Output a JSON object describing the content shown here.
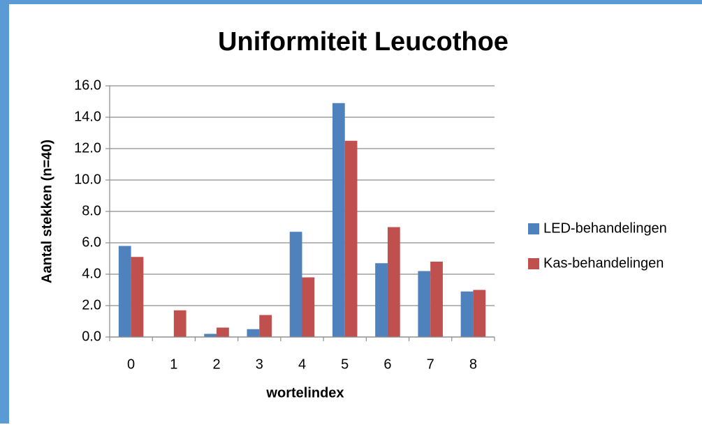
{
  "chart_data": {
    "type": "bar",
    "title": "Uniformiteit Leucothoe",
    "x_label": "wortelindex",
    "y_label": "Aantal stekken (n=40)",
    "categories": [
      "0",
      "1",
      "2",
      "3",
      "4",
      "5",
      "6",
      "7",
      "8"
    ],
    "series": [
      {
        "name": "LED-behandelingen",
        "color": "#4f81bd",
        "values": [
          5.8,
          0,
          0.2,
          0.5,
          6.7,
          14.9,
          4.7,
          4.2,
          2.9
        ]
      },
      {
        "name": "Kas-behandelingen",
        "color": "#c0504d",
        "values": [
          5.1,
          1.7,
          0.6,
          1.4,
          3.8,
          12.5,
          7.0,
          4.8,
          3.0
        ]
      }
    ],
    "ylim": [
      0,
      16
    ],
    "yticks": [
      {
        "value": 0,
        "label": "0.0"
      },
      {
        "value": 2,
        "label": "2.0"
      },
      {
        "value": 4,
        "label": "4.0"
      },
      {
        "value": 6,
        "label": "6.0"
      },
      {
        "value": 8,
        "label": "8.0"
      },
      {
        "value": 10,
        "label": "10.0"
      },
      {
        "value": 12,
        "label": "12.0"
      },
      {
        "value": 14,
        "label": "14.0"
      },
      {
        "value": 16,
        "label": "16.0"
      }
    ],
    "grid": true,
    "legend": "right"
  }
}
